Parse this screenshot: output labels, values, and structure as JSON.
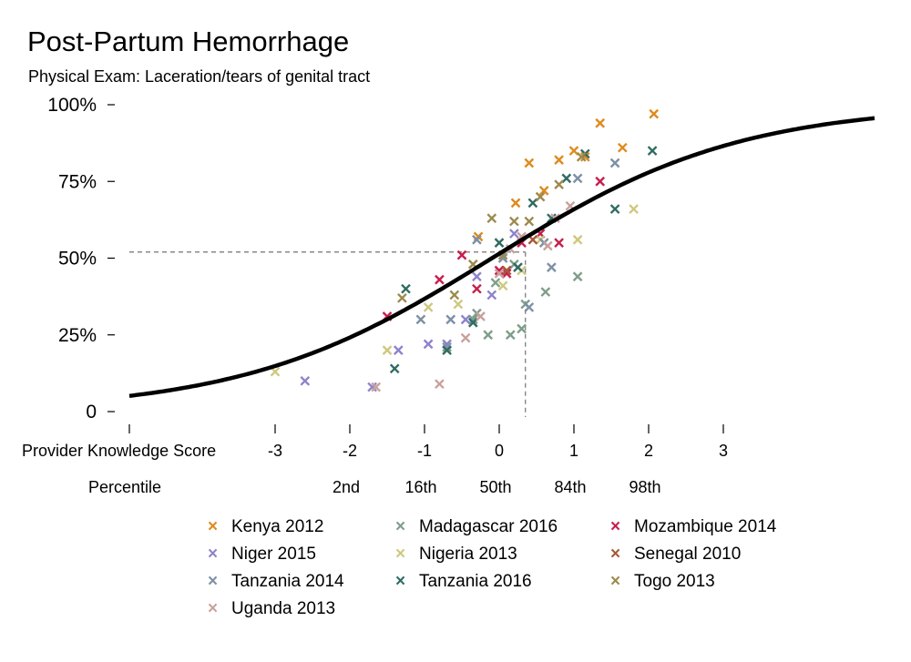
{
  "title": "Post-Partum Hemorrhage",
  "subtitle": "Physical Exam: Laceration/tears of genital tract",
  "chart_data": {
    "type": "scatter",
    "xlabel": "Provider Knowledge Score",
    "x_ticks": [
      "-3",
      "-2",
      "-1",
      "0",
      "1",
      "2",
      "3"
    ],
    "x_tick_values": [
      -3,
      -2,
      -1,
      0,
      1,
      2,
      3
    ],
    "percentile_label": "Percentile",
    "percentile_ticks": [
      {
        "x": -2,
        "label": "2nd"
      },
      {
        "x": -1,
        "label": "16th"
      },
      {
        "x": 0,
        "label": "50th"
      },
      {
        "x": 1,
        "label": "84th"
      },
      {
        "x": 2,
        "label": "98th"
      }
    ],
    "y_ticks": [
      "0",
      "25%",
      "50%",
      "75%",
      "100%"
    ],
    "y_tick_values": [
      0,
      0.25,
      0.5,
      0.75,
      1.0
    ],
    "xlim": [
      -5,
      5
    ],
    "ylim": [
      0,
      1
    ],
    "grid": false,
    "legend_position": "bottom",
    "reference_point": {
      "x": 0.35,
      "y": 0.52
    },
    "fit_curve": {
      "type": "logistic",
      "intercept": 0.08,
      "slope": 0.6,
      "x_range": [
        -5,
        5
      ]
    },
    "series": [
      {
        "name": "Kenya 2012",
        "color": "#E08A1E",
        "points": [
          [
            0.4,
            0.81
          ],
          [
            0.8,
            0.82
          ],
          [
            1.0,
            0.85
          ],
          [
            1.15,
            0.83
          ],
          [
            1.35,
            0.94
          ],
          [
            1.65,
            0.86
          ],
          [
            2.07,
            0.97
          ],
          [
            0.6,
            0.72
          ],
          [
            0.22,
            0.68
          ],
          [
            -0.28,
            0.57
          ]
        ]
      },
      {
        "name": "Madagascar 2016",
        "color": "#7E9E8A",
        "points": [
          [
            -0.15,
            0.25
          ],
          [
            0.15,
            0.25
          ],
          [
            0.3,
            0.27
          ],
          [
            0.35,
            0.35
          ],
          [
            0.62,
            0.39
          ],
          [
            1.05,
            0.44
          ],
          [
            -0.35,
            0.3
          ],
          [
            -0.7,
            0.21
          ],
          [
            -0.3,
            0.32
          ],
          [
            0.2,
            0.48
          ],
          [
            -0.05,
            0.42
          ]
        ]
      },
      {
        "name": "Mozambique 2014",
        "color": "#C81E4E",
        "points": [
          [
            -1.5,
            0.31
          ],
          [
            -0.8,
            0.43
          ],
          [
            -0.5,
            0.51
          ],
          [
            -0.3,
            0.4
          ],
          [
            0.0,
            0.46
          ],
          [
            0.3,
            0.55
          ],
          [
            0.55,
            0.58
          ],
          [
            0.8,
            0.55
          ],
          [
            1.35,
            0.75
          ],
          [
            0.1,
            0.45
          ]
        ]
      },
      {
        "name": "Niger 2015",
        "color": "#8C84CC",
        "points": [
          [
            -2.6,
            0.1
          ],
          [
            -1.7,
            0.08
          ],
          [
            -1.35,
            0.2
          ],
          [
            -0.95,
            0.22
          ],
          [
            -0.7,
            0.22
          ],
          [
            -0.45,
            0.3
          ],
          [
            -0.3,
            0.44
          ],
          [
            -0.1,
            0.38
          ],
          [
            0.2,
            0.58
          ]
        ]
      },
      {
        "name": "Nigeria 2013",
        "color": "#CFC87E",
        "points": [
          [
            -3.0,
            0.13
          ],
          [
            -1.5,
            0.2
          ],
          [
            -0.95,
            0.34
          ],
          [
            -0.55,
            0.35
          ],
          [
            0.3,
            0.46
          ],
          [
            0.55,
            0.56
          ],
          [
            1.05,
            0.56
          ],
          [
            1.8,
            0.66
          ],
          [
            0.05,
            0.41
          ]
        ]
      },
      {
        "name": "Senegal 2010",
        "color": "#A8583A",
        "points": [
          [
            0.1,
            0.46
          ],
          [
            0.45,
            0.56
          ]
        ]
      },
      {
        "name": "Tanzania 2014",
        "color": "#7D90A6",
        "points": [
          [
            -1.05,
            0.3
          ],
          [
            -0.65,
            0.3
          ],
          [
            -0.3,
            0.56
          ],
          [
            0.05,
            0.5
          ],
          [
            0.4,
            0.34
          ],
          [
            0.6,
            0.55
          ],
          [
            0.7,
            0.47
          ],
          [
            1.05,
            0.76
          ],
          [
            1.55,
            0.81
          ]
        ]
      },
      {
        "name": "Tanzania 2016",
        "color": "#2F6B62",
        "points": [
          [
            -1.25,
            0.4
          ],
          [
            -1.4,
            0.14
          ],
          [
            -0.7,
            0.2
          ],
          [
            -0.35,
            0.29
          ],
          [
            0.0,
            0.55
          ],
          [
            0.25,
            0.47
          ],
          [
            0.45,
            0.68
          ],
          [
            0.7,
            0.63
          ],
          [
            0.9,
            0.76
          ],
          [
            1.15,
            0.84
          ],
          [
            1.55,
            0.66
          ],
          [
            2.05,
            0.85
          ]
        ]
      },
      {
        "name": "Togo 2013",
        "color": "#9C8A4E",
        "points": [
          [
            -1.3,
            0.37
          ],
          [
            -0.6,
            0.38
          ],
          [
            -0.35,
            0.48
          ],
          [
            -0.1,
            0.63
          ],
          [
            0.05,
            0.51
          ],
          [
            0.2,
            0.62
          ],
          [
            0.4,
            0.62
          ],
          [
            0.55,
            0.7
          ],
          [
            0.8,
            0.74
          ],
          [
            1.1,
            0.83
          ]
        ]
      },
      {
        "name": "Uganda 2013",
        "color": "#C9A19C",
        "points": [
          [
            -1.65,
            0.08
          ],
          [
            -0.8,
            0.09
          ],
          [
            -0.45,
            0.24
          ],
          [
            -0.25,
            0.31
          ],
          [
            0.0,
            0.45
          ],
          [
            0.15,
            0.53
          ],
          [
            0.3,
            0.57
          ],
          [
            0.65,
            0.54
          ],
          [
            0.95,
            0.67
          ],
          [
            0.75,
            0.63
          ]
        ]
      }
    ]
  }
}
